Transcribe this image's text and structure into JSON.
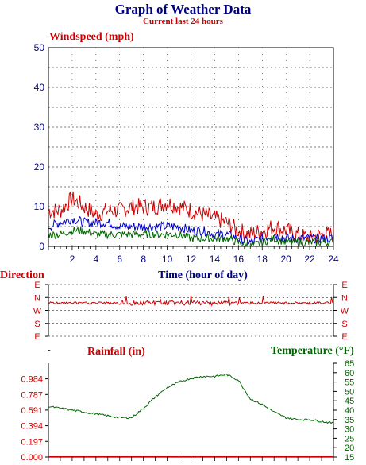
{
  "header": {
    "title": "Graph of Weather Data",
    "subtitle": "Current last 24 hours"
  },
  "colors": {
    "navy": "#000080",
    "red": "#cc0000",
    "green": "#006400",
    "blue": "#0000cc",
    "grid": "#000000"
  },
  "chart_data": [
    {
      "type": "line",
      "title": "Windspeed (mph)",
      "xlabel": "Time (hour of day)",
      "ylabel": "",
      "xlim": [
        0,
        24
      ],
      "ylim": [
        0,
        50
      ],
      "x_ticks": [
        2,
        4,
        6,
        8,
        10,
        12,
        14,
        16,
        18,
        20,
        22,
        24
      ],
      "y_ticks": [
        0,
        10,
        20,
        30,
        40,
        50
      ],
      "grid": true,
      "x": [
        0,
        1,
        2,
        3,
        4,
        5,
        6,
        7,
        8,
        9,
        10,
        11,
        12,
        13,
        14,
        15,
        16,
        17,
        18,
        19,
        20,
        21,
        22,
        23,
        24
      ],
      "series": [
        {
          "color": "#cc0000",
          "values": [
            9,
            9,
            12,
            10,
            8,
            9,
            9,
            10,
            10,
            10,
            11,
            10,
            9,
            8,
            7,
            6,
            4,
            3,
            4,
            5,
            4,
            3,
            2,
            3,
            3
          ]
        },
        {
          "color": "#0000cc",
          "values": [
            5,
            6,
            7,
            6,
            6,
            6,
            5,
            5,
            5,
            5,
            5,
            5,
            4,
            4,
            3,
            3,
            2,
            1,
            2,
            3,
            2,
            2,
            2,
            2,
            2
          ]
        },
        {
          "color": "#006400",
          "values": [
            3,
            3,
            4,
            4,
            3,
            3,
            3,
            3,
            3,
            3,
            3,
            3,
            2,
            2,
            2,
            2,
            1,
            0,
            1,
            2,
            1,
            1,
            1,
            1,
            1
          ]
        }
      ]
    },
    {
      "type": "line",
      "title": "Direction",
      "xlim": [
        0,
        24
      ],
      "y_ticks": [
        "E",
        "N",
        "W",
        "S",
        "E"
      ],
      "grid": true,
      "x": [
        0,
        2,
        4,
        6,
        8,
        10,
        12,
        14,
        16,
        18,
        20,
        22,
        24
      ],
      "series": [
        {
          "color": "#cc0000",
          "values": [
            "N",
            "N",
            "N",
            "N",
            "N",
            "N",
            "N",
            "N",
            "N",
            "N",
            "N",
            "N",
            "N"
          ]
        }
      ]
    },
    {
      "type": "line",
      "title": "Rainfall (in)",
      "ylabel": "Rainfall (in)",
      "y2label": "Temperature (°F)",
      "xlim": [
        0,
        24
      ],
      "ylim": [
        0,
        1.18
      ],
      "y_ticks": [
        "0.000",
        "0.197",
        "0.394",
        "0.591",
        "0.787",
        "0.984"
      ],
      "y2lim": [
        15,
        65
      ],
      "y2_ticks": [
        15,
        20,
        25,
        30,
        35,
        40,
        45,
        50,
        55,
        60,
        65
      ],
      "grid": false,
      "series": [
        {
          "name": "Temperature (°F)",
          "color": "#006400",
          "axis": "right",
          "x": [
            0,
            1,
            2,
            3,
            4,
            5,
            6,
            7,
            8,
            9,
            10,
            11,
            12,
            13,
            14,
            15,
            16,
            17,
            18,
            19,
            20,
            21,
            22,
            23,
            24
          ],
          "values": [
            42,
            41,
            40,
            39,
            38,
            37,
            36,
            36,
            41,
            47,
            52,
            55,
            57,
            58,
            58,
            59,
            56,
            46,
            43,
            39,
            36,
            35,
            35,
            34,
            33
          ]
        },
        {
          "name": "Rainfall (in)",
          "color": "#cc0000",
          "axis": "left",
          "x": [
            0,
            24
          ],
          "values": [
            0,
            0
          ]
        }
      ]
    }
  ]
}
